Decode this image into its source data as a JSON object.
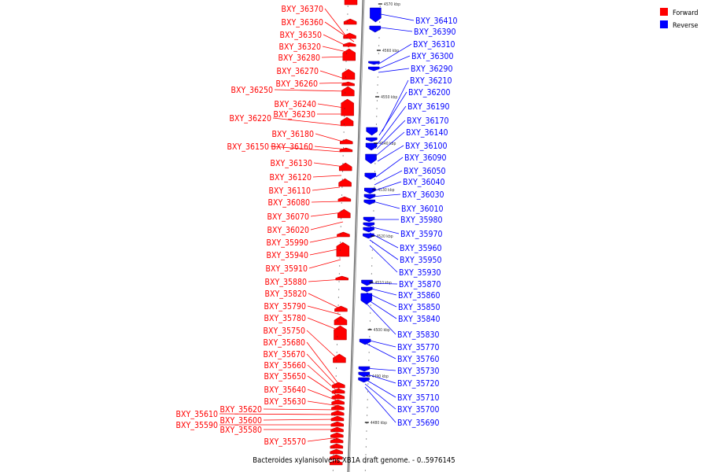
{
  "caption": "Bacteroides xylanisolvens XB1A draft genome. - 0..5976145",
  "legend": [
    {
      "label": "Forward",
      "color": "#ff0000"
    },
    {
      "label": "Reverse",
      "color": "#0000ff"
    }
  ],
  "colors": {
    "forward": "#ff0000",
    "reverse": "#0000ff",
    "backbone": "#888888"
  },
  "scale_ticks": [
    "4570 kbp",
    "4560 kbp",
    "4550 kbp",
    "4540 kbp",
    "4530 kbp",
    "4520 kbp",
    "4510 kbp",
    "4500 kbp",
    "4490 kbp",
    "4480 kbp"
  ],
  "forward_labels": [
    "BXY_36370",
    "BXY_36360",
    "BXY_36350",
    "BXY_36320",
    "BXY_36280",
    "BXY_36270",
    "BXY_36260",
    "BXY_36250",
    "BXY_36240",
    "BXY_36230",
    "BXY_36220",
    "BXY_36180",
    "BXY_36160",
    "BXY_36150",
    "BXY_36130",
    "BXY_36120",
    "BXY_36110",
    "BXY_36080",
    "BXY_36070",
    "BXY_36020",
    "BXY_35990",
    "BXY_35940",
    "BXY_35910",
    "BXY_35880",
    "BXY_35820",
    "BXY_35790",
    "BXY_35780",
    "BXY_35750",
    "BXY_35680",
    "BXY_35670",
    "BXY_35660",
    "BXY_35650",
    "BXY_35640",
    "BXY_35630",
    "BXY_35620",
    "BXY_35610",
    "BXY_35600",
    "BXY_35590",
    "BXY_35580",
    "BXY_35570"
  ],
  "reverse_labels": [
    "BXY_36410",
    "BXY_36390",
    "BXY_36310",
    "BXY_36300",
    "BXY_36290",
    "BXY_36210",
    "BXY_36200",
    "BXY_36190",
    "BXY_36170",
    "BXY_36140",
    "BXY_36100",
    "BXY_36090",
    "BXY_36050",
    "BXY_36040",
    "BXY_36030",
    "BXY_36010",
    "BXY_35980",
    "BXY_35970",
    "BXY_35960",
    "BXY_35950",
    "BXY_35930",
    "BXY_35870",
    "BXY_35860",
    "BXY_35850",
    "BXY_35840",
    "BXY_35830",
    "BXY_35770",
    "BXY_35760",
    "BXY_35730",
    "BXY_35720",
    "BXY_35710",
    "BXY_35700",
    "BXY_35690"
  ]
}
